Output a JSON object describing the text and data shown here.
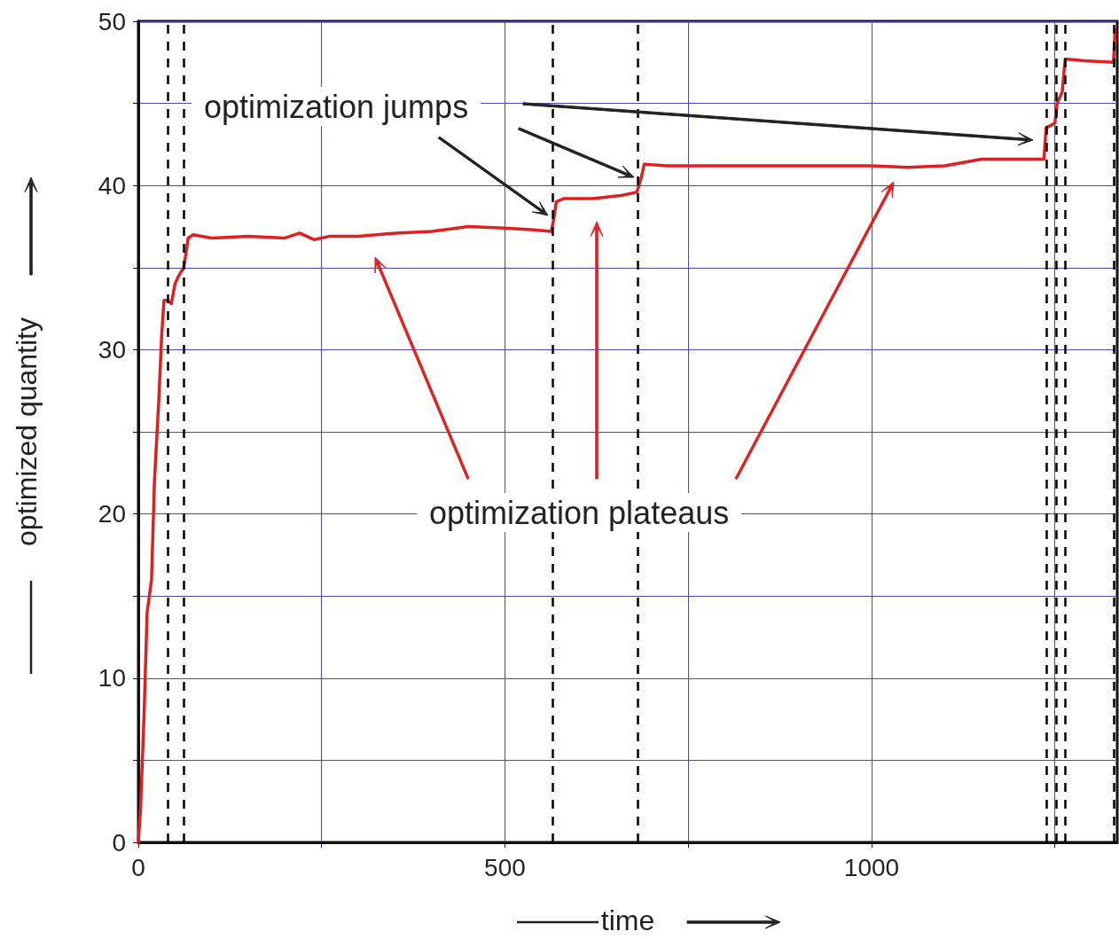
{
  "chart_data": {
    "type": "line",
    "xlabel": "time",
    "ylabel": "optimized quantity",
    "annotations": [
      "optimization jumps",
      "optimization plateaus"
    ],
    "x": [
      0,
      3,
      8,
      12,
      18,
      22,
      28,
      32,
      35,
      40,
      45,
      50,
      55,
      62,
      68,
      75,
      100,
      150,
      200,
      220,
      240,
      260,
      300,
      350,
      400,
      450,
      500,
      540,
      563,
      566,
      570,
      580,
      620,
      660,
      680,
      686,
      690,
      720,
      800,
      900,
      1000,
      1050,
      1100,
      1150,
      1235,
      1238,
      1250,
      1253,
      1260,
      1264,
      1290,
      1330,
      1332
    ],
    "values": [
      0,
      2,
      8,
      14,
      16,
      22,
      27,
      31,
      33,
      33,
      32.8,
      34,
      34.5,
      35,
      36.8,
      37,
      36.8,
      36.9,
      36.8,
      37.1,
      36.7,
      36.9,
      36.9,
      37.1,
      37.2,
      37.5,
      37.4,
      37.3,
      37.2,
      37.8,
      39,
      39.2,
      39.2,
      39.4,
      39.6,
      40.5,
      41.3,
      41.2,
      41.2,
      41.2,
      41.2,
      41.1,
      41.2,
      41.6,
      41.6,
      43.5,
      43.8,
      45,
      45.7,
      47.7,
      47.6,
      47.5,
      49.5
    ],
    "color": "#e02020",
    "line_style": "solid",
    "xlim": [
      0,
      1335
    ],
    "ylim": [
      0,
      50
    ],
    "xticks": [
      0,
      {
        "value": 250,
        "label": null
      },
      500,
      {
        "value": 750,
        "label": null
      },
      1000,
      {
        "value": 1250,
        "label": null
      }
    ],
    "yticks": [
      0,
      {
        "value": 5,
        "label": null
      },
      10,
      {
        "value": 15,
        "label": null
      },
      20,
      {
        "value": 25,
        "label": null
      },
      30,
      {
        "value": 35,
        "label": null
      },
      40,
      {
        "value": 45,
        "label": null
      },
      50
    ],
    "grid": true,
    "ref_lines": [
      {
        "axis": "x",
        "value": 40,
        "color": "#000000",
        "line_style": "dashed"
      },
      {
        "axis": "x",
        "value": 62,
        "color": "#000000",
        "line_style": "dashed"
      },
      {
        "axis": "x",
        "value": 565,
        "color": "#000000",
        "line_style": "dashed"
      },
      {
        "axis": "x",
        "value": 681,
        "color": "#000000",
        "line_style": "dashed"
      },
      {
        "axis": "x",
        "value": 1238,
        "color": "#000000",
        "line_style": "dashed"
      },
      {
        "axis": "x",
        "value": 1252,
        "color": "#000000",
        "line_style": "dashed"
      },
      {
        "axis": "x",
        "value": 1264,
        "color": "#000000",
        "line_style": "dashed"
      },
      {
        "axis": "x",
        "value": 1330,
        "color": "#000000",
        "line_style": "dashed"
      }
    ]
  }
}
